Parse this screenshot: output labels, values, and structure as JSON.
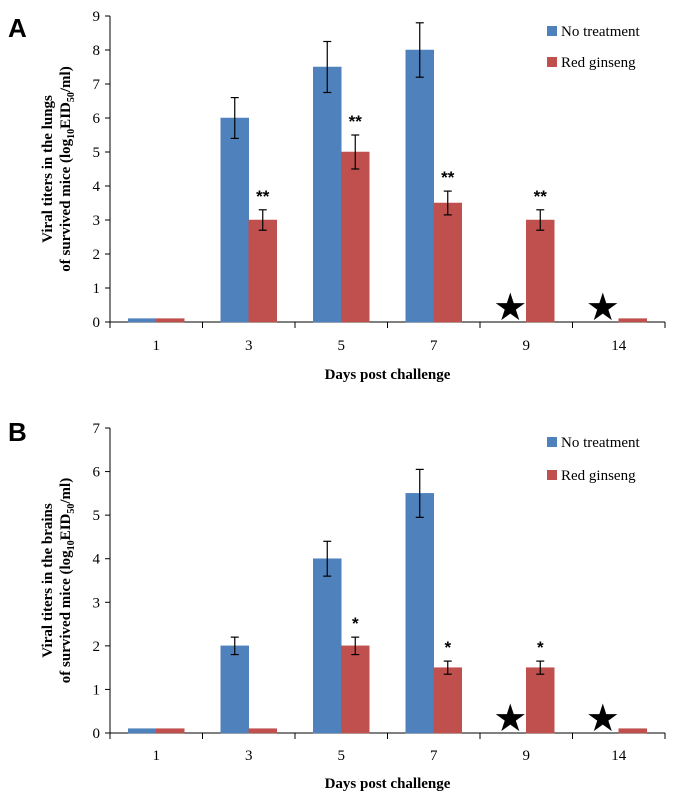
{
  "chart_data": [
    {
      "panel": "A",
      "type": "bar",
      "categories": [
        "1",
        "3",
        "5",
        "7",
        "9",
        "14"
      ],
      "xlabel": "Days post challenge",
      "ylabel_line1": "Viral titers in the lungs",
      "ylabel_line2_pre": "of survived mice (log",
      "ylabel_sub1": "10",
      "ylabel_mid": "EID",
      "ylabel_sub2": "50",
      "ylabel_post": "/ml)",
      "ylim": [
        0,
        9
      ],
      "yticks": [
        "0",
        "1",
        "2",
        "3",
        "4",
        "5",
        "6",
        "7",
        "8",
        "9"
      ],
      "legend_position": "top-right",
      "series": [
        {
          "name": "No treatment",
          "color": "#4f81bd",
          "values": [
            0.1,
            6.0,
            7.5,
            8.0,
            null,
            null
          ],
          "errors": [
            0,
            0.6,
            0.75,
            0.8,
            0,
            0
          ]
        },
        {
          "name": "Red ginseng",
          "color": "#c0504d",
          "values": [
            0.1,
            3.0,
            5.0,
            3.5,
            3.0,
            0.1
          ],
          "errors": [
            0,
            0.3,
            0.5,
            0.35,
            0.3,
            0
          ]
        }
      ],
      "significance": [
        "",
        "**",
        "**",
        "**",
        "**",
        ""
      ],
      "star_markers": [
        "9",
        "14"
      ],
      "star_glyph": "★"
    },
    {
      "panel": "B",
      "type": "bar",
      "categories": [
        "1",
        "3",
        "5",
        "7",
        "9",
        "14"
      ],
      "xlabel": "Days post challenge",
      "ylabel_line1": "Viral titers in the brains",
      "ylabel_line2_pre": "of survived mice (log",
      "ylabel_sub1": "10",
      "ylabel_mid": "EID",
      "ylabel_sub2": "50",
      "ylabel_post": "/ml)",
      "ylim": [
        0,
        7
      ],
      "yticks": [
        "0",
        "1",
        "2",
        "3",
        "4",
        "5",
        "6",
        "7"
      ],
      "legend_position": "top-right",
      "series": [
        {
          "name": "No treatment",
          "color": "#4f81bd",
          "values": [
            0.1,
            2.0,
            4.0,
            5.5,
            null,
            null
          ],
          "errors": [
            0,
            0.2,
            0.4,
            0.55,
            0,
            0
          ]
        },
        {
          "name": "Red ginseng",
          "color": "#c0504d",
          "values": [
            0.1,
            0.1,
            2.0,
            1.5,
            1.5,
            0.1
          ],
          "errors": [
            0,
            0,
            0.2,
            0.15,
            0.15,
            0
          ]
        }
      ],
      "significance": [
        "",
        "",
        "*",
        "*",
        "*",
        ""
      ],
      "star_markers": [
        "9",
        "14"
      ],
      "star_glyph": "★"
    }
  ]
}
